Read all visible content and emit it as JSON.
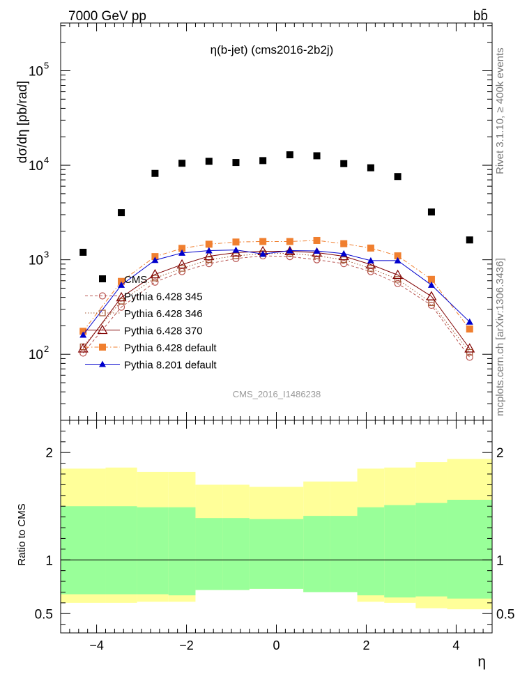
{
  "header": {
    "left": "7000 GeV pp",
    "right": "bb̄"
  },
  "side_text": {
    "rivet": "Rivet 3.1.10, ≥ 400k events",
    "mcplots": "mcplots.cern.ch [arXiv:1306.3436]"
  },
  "chart_data": [
    {
      "type": "scatter",
      "panel": "main",
      "title": "η(b-jet) (cms2016-2b2j)",
      "analysis_label": "CMS_2016_I1486238",
      "ylabel": "dσ/dη [pb/rad]",
      "yscale": "log",
      "ylim": [
        20,
        320000
      ],
      "xlim": [
        -4.8,
        4.8
      ],
      "x_ticks": [
        -4,
        -2,
        0,
        2,
        4
      ],
      "y_tick_labels": [
        "10^2",
        "10^3",
        "10^4",
        "10^5"
      ],
      "x": [
        -4.3,
        -3.45,
        -2.7,
        -2.1,
        -1.5,
        -0.9,
        -0.3,
        0.3,
        0.9,
        1.5,
        2.1,
        2.7,
        3.45,
        4.3
      ],
      "series": [
        {
          "name": "CMS",
          "color": "#000000",
          "marker": "square-filled",
          "line": "none",
          "values": [
            1200,
            3150,
            8200,
            10500,
            11000,
            10700,
            11200,
            12900,
            12600,
            10400,
            9400,
            7600,
            3200,
            1620
          ]
        },
        {
          "name": "Pythia 6.428 345",
          "color": "#b85450",
          "marker": "circle-open",
          "line": "dashed",
          "values": [
            103,
            315,
            580,
            750,
            910,
            1030,
            1100,
            1080,
            1000,
            910,
            750,
            560,
            330,
            93
          ]
        },
        {
          "name": "Pythia 6.428 346",
          "color": "#a0522d",
          "marker": "square-open",
          "line": "dotted",
          "values": [
            120,
            365,
            640,
            810,
            1000,
            1100,
            1160,
            1170,
            1100,
            1000,
            810,
            620,
            350,
            105
          ]
        },
        {
          "name": "Pythia 6.428 370",
          "color": "#800000",
          "marker": "triangle-open",
          "line": "solid",
          "values": [
            115,
            400,
            700,
            890,
            1090,
            1190,
            1230,
            1230,
            1190,
            1090,
            890,
            690,
            410,
            115
          ]
        },
        {
          "name": "Pythia 6.428 default",
          "color": "#f07f2f",
          "marker": "square-filled",
          "line": "dashdot",
          "values": [
            175,
            590,
            1080,
            1320,
            1460,
            1540,
            1560,
            1560,
            1600,
            1480,
            1330,
            1100,
            620,
            185
          ]
        },
        {
          "name": "Pythia 8.201 default",
          "color": "#0000cc",
          "marker": "triangle-filled",
          "line": "solid",
          "values": [
            160,
            540,
            990,
            1180,
            1250,
            1270,
            1150,
            1250,
            1240,
            1160,
            980,
            980,
            540,
            220
          ]
        }
      ]
    },
    {
      "type": "area",
      "panel": "ratio",
      "ylabel": "Ratio to CMS",
      "xlabel": "η",
      "ylim": [
        0.32,
        2.3
      ],
      "y_ticks": [
        0.5,
        1,
        2
      ],
      "y_tick_labels": [
        "0.5",
        "1",
        "2"
      ],
      "x_ticks": [
        -4,
        -2,
        0,
        2,
        4
      ],
      "x_tick_labels": [
        "−4",
        "−2",
        "0",
        "2",
        "4"
      ],
      "bin_edges": [
        -4.8,
        -3.8,
        -3.1,
        -2.4,
        -1.8,
        -1.2,
        -0.6,
        0.6,
        1.2,
        1.8,
        2.4,
        3.1,
        3.8,
        4.8
      ],
      "green_band": {
        "name": "stat",
        "color": "#99ff99",
        "lower": [
          0.68,
          0.68,
          0.68,
          0.67,
          0.72,
          0.72,
          0.73,
          0.7,
          0.7,
          0.67,
          0.65,
          0.66,
          0.64
        ],
        "upper": [
          1.5,
          1.5,
          1.49,
          1.49,
          1.39,
          1.39,
          1.38,
          1.41,
          1.41,
          1.49,
          1.51,
          1.53,
          1.56
        ]
      },
      "yellow_band": {
        "name": "total",
        "color": "#ffff99",
        "lower": [
          0.6,
          0.6,
          0.61,
          0.61,
          0.72,
          0.72,
          0.73,
          0.7,
          0.7,
          0.61,
          0.6,
          0.55,
          0.54
        ],
        "upper": [
          1.85,
          1.86,
          1.82,
          1.82,
          1.7,
          1.7,
          1.68,
          1.73,
          1.73,
          1.85,
          1.86,
          1.91,
          1.94
        ]
      },
      "reference_line": 1
    }
  ]
}
